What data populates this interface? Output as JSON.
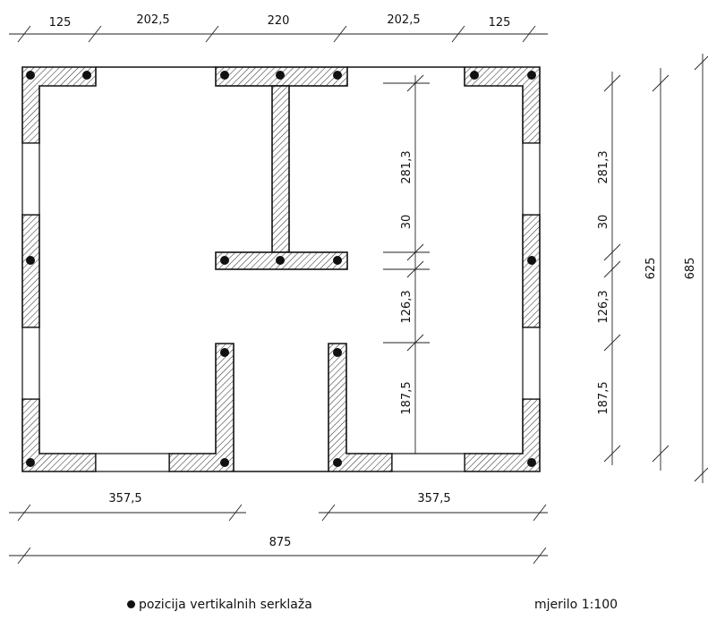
{
  "dimensions": {
    "top": [
      "125",
      "202,5",
      "220",
      "202,5",
      "125"
    ],
    "bottom_left": "357,5",
    "bottom_right": "357,5",
    "total_width": "875",
    "inner_vertical": [
      "281,3",
      "30",
      "126,3",
      "187,5"
    ],
    "right_vertical": [
      "281,3",
      "30",
      "126,3",
      "187,5"
    ],
    "overall_625": "625",
    "overall_685": "685"
  },
  "legend": {
    "columns_label": "pozicija vertikalnih serklaža",
    "column_marker_icon": "filled-circle-icon",
    "scale_label": "mjerilo 1:100"
  },
  "colors": {
    "ink": "#111111",
    "background": "#ffffff"
  }
}
